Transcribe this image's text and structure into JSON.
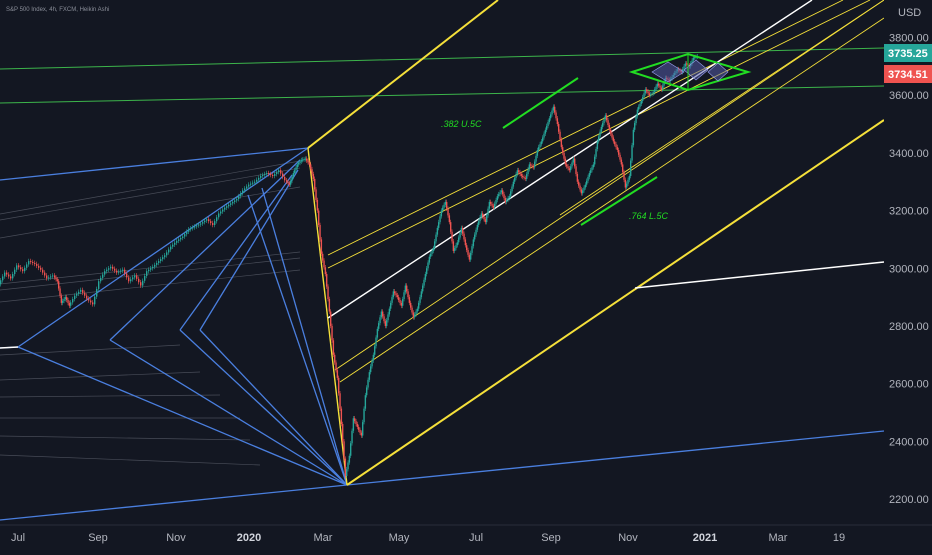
{
  "header": {
    "symbol_line": "S&P 500 Index, 4h, FXCM, Heikin Ashi"
  },
  "axis": {
    "currency": "USD"
  },
  "price_tags": [
    {
      "label": "3735.25",
      "color": "#26a69a"
    },
    {
      "label": "3734.51",
      "color": "#ef5350"
    }
  ],
  "annotations": {
    "upper": ".382 U.5C",
    "lower": ".764 L.5C"
  },
  "colors": {
    "background": "#131722",
    "bull": "#26a69a",
    "bear": "#ef5350",
    "pitchfork": "#f5e03a",
    "fan": "#4a7fdf",
    "horizontal": "#3cb44b",
    "midline": "#ffffff",
    "anno": "#22dd22"
  },
  "chart_data": {
    "type": "candlestick",
    "y_ticks": [
      "3800.00",
      "3600.00",
      "3400.00",
      "3200.00",
      "3000.00",
      "2800.00",
      "2600.00",
      "2400.00",
      "2200.00"
    ],
    "y_tick_values": [
      3800,
      3600,
      3400,
      3200,
      3000,
      2800,
      2600,
      2400,
      2200
    ],
    "x_ticks": [
      "Jul",
      "Sep",
      "Nov",
      "2020",
      "Mar",
      "May",
      "Jul",
      "Sep",
      "Nov",
      "2021",
      "Mar",
      "19"
    ],
    "ylim": [
      2110,
      3930
    ],
    "series": [
      {
        "name": "S&P 500 Index",
        "points": [
          [
            0,
            2945
          ],
          [
            6,
            2985
          ],
          [
            12,
            2965
          ],
          [
            18,
            3010
          ],
          [
            24,
            2990
          ],
          [
            30,
            3025
          ],
          [
            36,
            3015
          ],
          [
            42,
            2995
          ],
          [
            48,
            2965
          ],
          [
            54,
            2975
          ],
          [
            58,
            2955
          ],
          [
            62,
            2880
          ],
          [
            66,
            2900
          ],
          [
            70,
            2870
          ],
          [
            76,
            2905
          ],
          [
            82,
            2925
          ],
          [
            88,
            2895
          ],
          [
            94,
            2875
          ],
          [
            100,
            2955
          ],
          [
            106,
            2990
          ],
          [
            112,
            3005
          ],
          [
            118,
            2985
          ],
          [
            124,
            2995
          ],
          [
            130,
            2955
          ],
          [
            136,
            2975
          ],
          [
            142,
            2940
          ],
          [
            148,
            2990
          ],
          [
            154,
            3005
          ],
          [
            160,
            3025
          ],
          [
            166,
            3045
          ],
          [
            172,
            3075
          ],
          [
            178,
            3095
          ],
          [
            184,
            3110
          ],
          [
            190,
            3135
          ],
          [
            196,
            3145
          ],
          [
            202,
            3155
          ],
          [
            208,
            3170
          ],
          [
            214,
            3150
          ],
          [
            220,
            3190
          ],
          [
            226,
            3210
          ],
          [
            232,
            3225
          ],
          [
            238,
            3240
          ],
          [
            244,
            3270
          ],
          [
            250,
            3290
          ],
          [
            256,
            3300
          ],
          [
            262,
            3320
          ],
          [
            268,
            3330
          ],
          [
            274,
            3320
          ],
          [
            280,
            3340
          ],
          [
            286,
            3305
          ],
          [
            290,
            3290
          ],
          [
            294,
            3330
          ],
          [
            298,
            3360
          ],
          [
            302,
            3375
          ],
          [
            306,
            3380
          ],
          [
            310,
            3360
          ],
          [
            314,
            3310
          ],
          [
            318,
            3200
          ],
          [
            322,
            3050
          ],
          [
            326,
            2980
          ],
          [
            330,
            2850
          ],
          [
            334,
            2700
          ],
          [
            338,
            2620
          ],
          [
            342,
            2460
          ],
          [
            346,
            2280
          ],
          [
            350,
            2350
          ],
          [
            354,
            2480
          ],
          [
            358,
            2450
          ],
          [
            362,
            2420
          ],
          [
            366,
            2560
          ],
          [
            370,
            2640
          ],
          [
            374,
            2700
          ],
          [
            378,
            2790
          ],
          [
            382,
            2850
          ],
          [
            386,
            2800
          ],
          [
            390,
            2860
          ],
          [
            394,
            2920
          ],
          [
            398,
            2900
          ],
          [
            402,
            2870
          ],
          [
            406,
            2940
          ],
          [
            410,
            2880
          ],
          [
            414,
            2830
          ],
          [
            418,
            2860
          ],
          [
            422,
            2920
          ],
          [
            426,
            2980
          ],
          [
            430,
            3040
          ],
          [
            434,
            3070
          ],
          [
            438,
            3140
          ],
          [
            442,
            3200
          ],
          [
            446,
            3230
          ],
          [
            450,
            3160
          ],
          [
            454,
            3060
          ],
          [
            458,
            3090
          ],
          [
            462,
            3140
          ],
          [
            466,
            3080
          ],
          [
            470,
            3030
          ],
          [
            474,
            3100
          ],
          [
            478,
            3150
          ],
          [
            482,
            3190
          ],
          [
            486,
            3160
          ],
          [
            490,
            3230
          ],
          [
            494,
            3210
          ],
          [
            498,
            3250
          ],
          [
            502,
            3270
          ],
          [
            506,
            3230
          ],
          [
            510,
            3250
          ],
          [
            514,
            3300
          ],
          [
            518,
            3340
          ],
          [
            522,
            3320
          ],
          [
            526,
            3310
          ],
          [
            530,
            3360
          ],
          [
            534,
            3350
          ],
          [
            538,
            3410
          ],
          [
            542,
            3440
          ],
          [
            546,
            3480
          ],
          [
            550,
            3520
          ],
          [
            554,
            3560
          ],
          [
            558,
            3500
          ],
          [
            562,
            3420
          ],
          [
            566,
            3360
          ],
          [
            570,
            3340
          ],
          [
            574,
            3380
          ],
          [
            578,
            3300
          ],
          [
            582,
            3260
          ],
          [
            586,
            3290
          ],
          [
            590,
            3330
          ],
          [
            594,
            3360
          ],
          [
            598,
            3440
          ],
          [
            602,
            3490
          ],
          [
            606,
            3530
          ],
          [
            610,
            3480
          ],
          [
            614,
            3440
          ],
          [
            618,
            3410
          ],
          [
            622,
            3360
          ],
          [
            626,
            3280
          ],
          [
            630,
            3320
          ],
          [
            634,
            3480
          ],
          [
            638,
            3550
          ],
          [
            642,
            3580
          ],
          [
            646,
            3620
          ],
          [
            650,
            3600
          ],
          [
            654,
            3610
          ],
          [
            658,
            3640
          ],
          [
            662,
            3620
          ],
          [
            666,
            3660
          ],
          [
            670,
            3650
          ],
          [
            674,
            3670
          ],
          [
            678,
            3690
          ],
          [
            682,
            3680
          ],
          [
            686,
            3710
          ],
          [
            690,
            3700
          ],
          [
            694,
            3730
          ],
          [
            698,
            3735
          ]
        ]
      }
    ]
  }
}
